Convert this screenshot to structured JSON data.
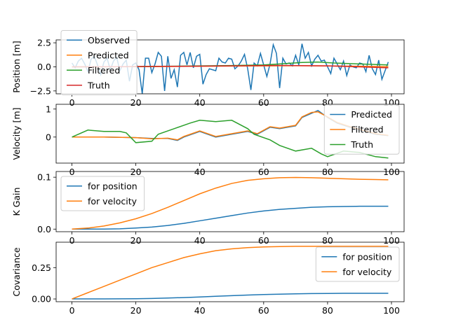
{
  "chart_data": [
    {
      "type": "line",
      "ylabel": "Position [m]",
      "xlim": [
        -4.95,
        103.95
      ],
      "ylim": [
        -2.8,
        2.8
      ],
      "xticks": [
        0,
        20,
        40,
        60,
        80,
        100
      ],
      "yticks": [
        {
          "value": -2.5,
          "label": "−2.5"
        },
        {
          "value": 0,
          "label": "0.0"
        },
        {
          "value": 2.5,
          "label": "2.5"
        }
      ],
      "legend": "upper left",
      "series": [
        {
          "name": "Observed",
          "color": "#1f77b4",
          "x": [
            0,
            1,
            2,
            3,
            4,
            5,
            6,
            7,
            8,
            9,
            10,
            11,
            12,
            13,
            14,
            15,
            16,
            17,
            18,
            19,
            20,
            21,
            22,
            23,
            24,
            25,
            26,
            27,
            28,
            29,
            30,
            31,
            32,
            33,
            34,
            35,
            36,
            37,
            38,
            39,
            40,
            41,
            42,
            43,
            44,
            45,
            46,
            47,
            48,
            49,
            50,
            51,
            52,
            53,
            54,
            55,
            56,
            57,
            58,
            59,
            60,
            61,
            62,
            63,
            64,
            65,
            66,
            67,
            68,
            69,
            70,
            71,
            72,
            73,
            74,
            75,
            76,
            77,
            78,
            79,
            80,
            81,
            82,
            83,
            84,
            85,
            86,
            87,
            88,
            89,
            90,
            91,
            92,
            93,
            94,
            95,
            96,
            97,
            98,
            99
          ],
          "values": [
            0.4,
            -0.1,
            0.6,
            0.9,
            0.3,
            -0.5,
            0.8,
            1.1,
            0.2,
            -0.8,
            0.5,
            0.9,
            -0.3,
            0.6,
            1.0,
            -0.4,
            0.3,
            0.7,
            -1.5,
            0.2,
            0.4,
            -0.3,
            -2.8,
            0.9,
            0.9,
            -0.6,
            0.3,
            1.5,
            1.1,
            -2.5,
            1.1,
            -1.2,
            -0.3,
            -2.1,
            1.2,
            1.5,
            0.2,
            1.5,
            -0.1,
            1.1,
            1.3,
            -1.8,
            -0.8,
            -0.2,
            -0.3,
            -0.4,
            0.9,
            0.5,
            0.4,
            0.9,
            0.8,
            -0.2,
            0.1,
            0.6,
            1.3,
            -0.2,
            -2.4,
            0.4,
            0.1,
            1.4,
            0.2,
            -1.0,
            0.3,
            2.3,
            1.4,
            -2.2,
            0.9,
            0.3,
            0.4,
            0.1,
            1.2,
            0.2,
            2.4,
            0.9,
            1.5,
            0.1,
            0.8,
            1.2,
            0.6,
            0.7,
            0.0,
            -0.7,
            0.9,
            0.3,
            -0.3,
            0.6,
            -0.9,
            0.2,
            0.0,
            -0.1,
            0.4,
            0.3,
            -0.5,
            1.2,
            -0.2,
            -0.8,
            0.7,
            -1.3,
            -0.4,
            0.5
          ]
        },
        {
          "name": "Predicted",
          "color": "#ff7f0e",
          "x": [
            0,
            10,
            20,
            30,
            40,
            50,
            60,
            70,
            80,
            90,
            99
          ],
          "values": [
            0,
            0,
            0.02,
            0.04,
            0.06,
            0.08,
            0.1,
            0.12,
            0.1,
            0.06,
            0.02
          ]
        },
        {
          "name": "Filtered",
          "color": "#2ca02c",
          "x": [
            0,
            10,
            20,
            30,
            40,
            50,
            60,
            65,
            72,
            77,
            82,
            90,
            99
          ],
          "values": [
            0,
            0.01,
            0.03,
            0.06,
            0.1,
            0.14,
            0.2,
            0.3,
            0.45,
            0.5,
            0.4,
            0.3,
            0.2
          ]
        },
        {
          "name": "Truth",
          "color": "#d62728",
          "x": [
            0,
            15,
            30,
            50,
            65,
            80,
            90,
            99
          ],
          "values": [
            0,
            0.02,
            0.05,
            0.1,
            0.15,
            0.1,
            0.0,
            -0.1
          ]
        }
      ]
    },
    {
      "type": "line",
      "ylabel": "Velocity [m]",
      "xlim": [
        -4.95,
        103.95
      ],
      "ylim": [
        -0.93,
        1.17
      ],
      "xticks": [
        0,
        20,
        40,
        60,
        80,
        100
      ],
      "yticks": [
        0,
        1
      ],
      "legend": "lower right",
      "series": [
        {
          "name": "Predicted",
          "color": "#1f77b4",
          "x": [
            0,
            10,
            20,
            25,
            30,
            33,
            35,
            40,
            45,
            50,
            55,
            58,
            62,
            65,
            70,
            72,
            75,
            77,
            80,
            83,
            87,
            90,
            95,
            99
          ],
          "values": [
            0,
            0,
            -0.02,
            -0.05,
            -0.05,
            -0.12,
            0,
            0.2,
            0,
            0.1,
            0.2,
            0.1,
            0.35,
            0.3,
            0.4,
            0.7,
            0.85,
            0.95,
            0.7,
            0.5,
            0.35,
            0.25,
            0.1,
            0.05
          ]
        },
        {
          "name": "Filtered",
          "color": "#ff7f0e",
          "x": [
            0,
            10,
            20,
            25,
            30,
            33,
            35,
            40,
            45,
            50,
            55,
            58,
            62,
            65,
            70,
            72,
            75,
            77,
            80,
            83,
            87,
            90,
            95,
            99
          ],
          "values": [
            0,
            0,
            -0.02,
            -0.06,
            -0.04,
            -0.1,
            0.02,
            0.22,
            0.02,
            0.12,
            0.22,
            0.12,
            0.37,
            0.32,
            0.42,
            0.72,
            0.88,
            0.9,
            0.72,
            0.52,
            0.37,
            0.27,
            0.12,
            0.06
          ]
        },
        {
          "name": "Truth",
          "color": "#2ca02c",
          "x": [
            0,
            5,
            10,
            15,
            17,
            20,
            25,
            27,
            32,
            37,
            40,
            45,
            50,
            55,
            57,
            62,
            65,
            70,
            75,
            78,
            80,
            85,
            90,
            95,
            99
          ],
          "values": [
            0,
            0.25,
            0.2,
            0.2,
            0.15,
            -0.2,
            -0.15,
            0.1,
            0.3,
            0.5,
            0.6,
            0.55,
            0.6,
            0.3,
            0.1,
            -0.1,
            -0.3,
            -0.5,
            -0.4,
            -0.6,
            -0.7,
            -0.5,
            -0.55,
            -0.7,
            -0.75
          ]
        }
      ]
    },
    {
      "type": "line",
      "ylabel": "K Gain",
      "xlim": [
        -4.95,
        103.95
      ],
      "ylim": [
        -0.005,
        0.111
      ],
      "xticks": [
        0,
        20,
        40,
        60,
        80,
        100
      ],
      "yticks": [
        {
          "value": 0,
          "label": "0.0"
        },
        0.1
      ],
      "legend": "upper left",
      "series": [
        {
          "name": "for position",
          "color": "#1f77b4",
          "x": [
            0,
            5,
            10,
            15,
            20,
            25,
            30,
            35,
            40,
            45,
            50,
            55,
            60,
            65,
            70,
            75,
            80,
            85,
            90,
            95,
            99
          ],
          "values": [
            0,
            0,
            0,
            0.0005,
            0.002,
            0.004,
            0.007,
            0.011,
            0.016,
            0.021,
            0.026,
            0.031,
            0.035,
            0.038,
            0.04,
            0.042,
            0.043,
            0.0435,
            0.044,
            0.044,
            0.044
          ]
        },
        {
          "name": "for velocity",
          "color": "#ff7f0e",
          "x": [
            0,
            5,
            10,
            15,
            20,
            25,
            30,
            35,
            40,
            45,
            50,
            55,
            60,
            65,
            70,
            75,
            80,
            85,
            90,
            95,
            99
          ],
          "values": [
            0,
            0.002,
            0.006,
            0.012,
            0.02,
            0.03,
            0.042,
            0.055,
            0.068,
            0.079,
            0.088,
            0.094,
            0.097,
            0.099,
            0.0995,
            0.099,
            0.098,
            0.097,
            0.096,
            0.0955,
            0.095
          ]
        }
      ]
    },
    {
      "type": "line",
      "ylabel": "Covariance",
      "xlim": [
        -4.95,
        103.95
      ],
      "ylim": [
        -0.022,
        0.453
      ],
      "xticks": [
        0,
        20,
        40,
        60,
        80,
        100
      ],
      "yticks": [
        {
          "value": 0,
          "label": "0.00"
        },
        0.25
      ],
      "legend": "upper right",
      "series": [
        {
          "name": "for position",
          "color": "#1f77b4",
          "x": [
            0,
            5,
            10,
            15,
            20,
            25,
            30,
            35,
            40,
            45,
            50,
            55,
            60,
            65,
            70,
            75,
            80,
            85,
            90,
            95,
            99
          ],
          "values": [
            0,
            0,
            0,
            0.001,
            0.002,
            0.004,
            0.007,
            0.011,
            0.016,
            0.021,
            0.026,
            0.031,
            0.035,
            0.038,
            0.041,
            0.043,
            0.044,
            0.045,
            0.045,
            0.045,
            0.045
          ]
        },
        {
          "name": "for velocity",
          "color": "#ff7f0e",
          "x": [
            0,
            5,
            10,
            15,
            20,
            25,
            30,
            35,
            40,
            45,
            50,
            55,
            60,
            65,
            70,
            75,
            80,
            85,
            90,
            95,
            99
          ],
          "values": [
            0,
            0.05,
            0.1,
            0.15,
            0.2,
            0.25,
            0.29,
            0.33,
            0.36,
            0.385,
            0.4,
            0.41,
            0.415,
            0.418,
            0.42,
            0.42,
            0.42,
            0.42,
            0.42,
            0.42,
            0.42
          ]
        }
      ]
    }
  ]
}
